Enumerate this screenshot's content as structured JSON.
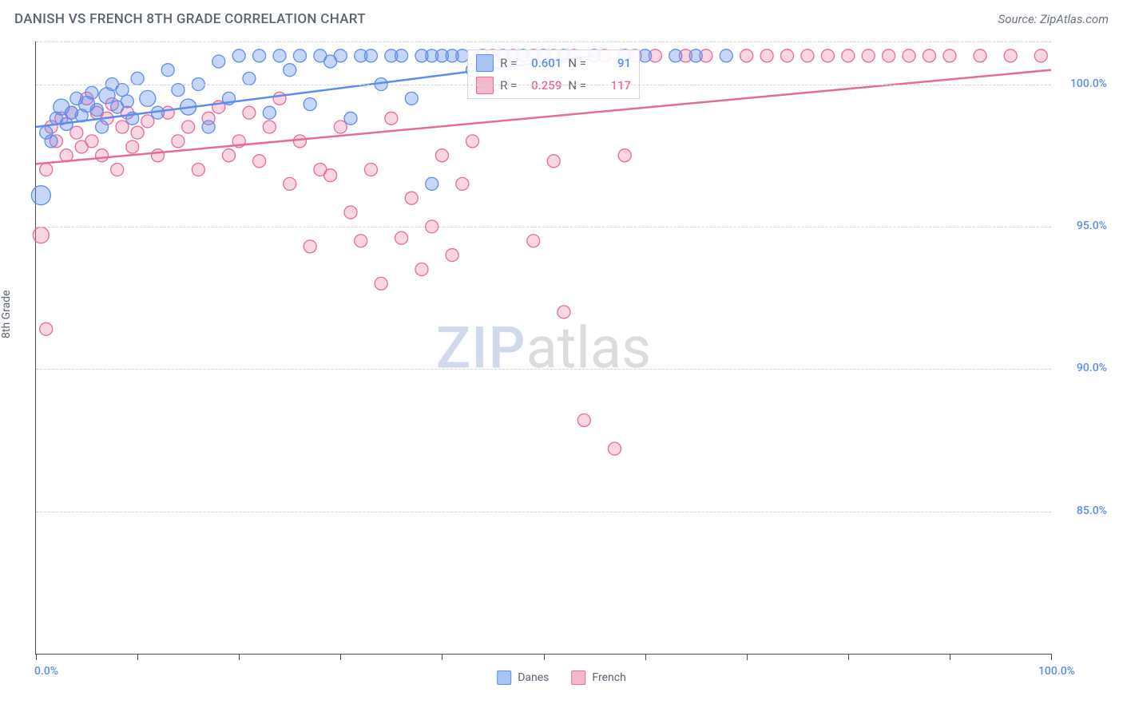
{
  "header": {
    "title": "DANISH VS FRENCH 8TH GRADE CORRELATION CHART",
    "source": "Source: ZipAtlas.com"
  },
  "y_axis": {
    "label": "8th Grade"
  },
  "chart": {
    "type": "scatter",
    "x_domain": [
      0,
      100
    ],
    "y_domain": [
      80,
      101.5
    ],
    "y_ticks": [
      {
        "v": 100,
        "label": "100.0%"
      },
      {
        "v": 95,
        "label": "95.0%"
      },
      {
        "v": 90,
        "label": "90.0%"
      },
      {
        "v": 85,
        "label": "85.0%"
      }
    ],
    "x_ticks": [
      0,
      10,
      20,
      30,
      40,
      50,
      60,
      70,
      80,
      90,
      100
    ],
    "x_min_label": "0.0%",
    "x_max_label": "100.0%",
    "background_color": "#ffffff",
    "grid_color": "#d0d4db",
    "axis_color": "#4a4a4a",
    "watermark": {
      "zip": "ZIP",
      "atlas": "atlas"
    }
  },
  "series": {
    "danes": {
      "label": "Danes",
      "color_fill": "rgba(91,141,239,0.35)",
      "color_stroke": "#5b8def",
      "swatch_fill": "#a9c3f3",
      "swatch_stroke": "#5b8def",
      "r_value": "0.601",
      "n_value": "91",
      "trend": {
        "x1": 0,
        "y1": 98.5,
        "x2": 55,
        "y2": 101.0
      },
      "points": [
        {
          "x": 0.5,
          "y": 96.1,
          "r": 12
        },
        {
          "x": 1,
          "y": 98.3,
          "r": 8
        },
        {
          "x": 1.5,
          "y": 98.0,
          "r": 8
        },
        {
          "x": 2,
          "y": 98.8,
          "r": 8
        },
        {
          "x": 2.5,
          "y": 99.2,
          "r": 10
        },
        {
          "x": 3,
          "y": 98.6,
          "r": 8
        },
        {
          "x": 3.5,
          "y": 99.0,
          "r": 8
        },
        {
          "x": 4,
          "y": 99.5,
          "r": 8
        },
        {
          "x": 4.5,
          "y": 98.9,
          "r": 8
        },
        {
          "x": 5,
          "y": 99.3,
          "r": 10
        },
        {
          "x": 5.5,
          "y": 99.7,
          "r": 8
        },
        {
          "x": 6,
          "y": 99.1,
          "r": 8
        },
        {
          "x": 6.5,
          "y": 98.5,
          "r": 8
        },
        {
          "x": 7,
          "y": 99.6,
          "r": 10
        },
        {
          "x": 7.5,
          "y": 100.0,
          "r": 8
        },
        {
          "x": 8,
          "y": 99.2,
          "r": 8
        },
        {
          "x": 8.5,
          "y": 99.8,
          "r": 8
        },
        {
          "x": 9,
          "y": 99.4,
          "r": 8
        },
        {
          "x": 9.5,
          "y": 98.8,
          "r": 8
        },
        {
          "x": 10,
          "y": 100.2,
          "r": 8
        },
        {
          "x": 11,
          "y": 99.5,
          "r": 10
        },
        {
          "x": 12,
          "y": 99.0,
          "r": 8
        },
        {
          "x": 13,
          "y": 100.5,
          "r": 8
        },
        {
          "x": 14,
          "y": 99.8,
          "r": 8
        },
        {
          "x": 15,
          "y": 99.2,
          "r": 10
        },
        {
          "x": 16,
          "y": 100.0,
          "r": 8
        },
        {
          "x": 17,
          "y": 98.5,
          "r": 8
        },
        {
          "x": 18,
          "y": 100.8,
          "r": 8
        },
        {
          "x": 19,
          "y": 99.5,
          "r": 8
        },
        {
          "x": 20,
          "y": 101.0,
          "r": 8
        },
        {
          "x": 21,
          "y": 100.2,
          "r": 8
        },
        {
          "x": 22,
          "y": 101.0,
          "r": 8
        },
        {
          "x": 23,
          "y": 99.0,
          "r": 8
        },
        {
          "x": 24,
          "y": 101.0,
          "r": 8
        },
        {
          "x": 25,
          "y": 100.5,
          "r": 8
        },
        {
          "x": 26,
          "y": 101.0,
          "r": 8
        },
        {
          "x": 27,
          "y": 99.3,
          "r": 8
        },
        {
          "x": 28,
          "y": 101.0,
          "r": 8
        },
        {
          "x": 29,
          "y": 100.8,
          "r": 8
        },
        {
          "x": 30,
          "y": 101.0,
          "r": 8
        },
        {
          "x": 31,
          "y": 98.8,
          "r": 8
        },
        {
          "x": 32,
          "y": 101.0,
          "r": 8
        },
        {
          "x": 33,
          "y": 101.0,
          "r": 8
        },
        {
          "x": 34,
          "y": 100.0,
          "r": 8
        },
        {
          "x": 35,
          "y": 101.0,
          "r": 8
        },
        {
          "x": 36,
          "y": 101.0,
          "r": 8
        },
        {
          "x": 37,
          "y": 99.5,
          "r": 8
        },
        {
          "x": 38,
          "y": 101.0,
          "r": 8
        },
        {
          "x": 39,
          "y": 101.0,
          "r": 8
        },
        {
          "x": 40,
          "y": 101.0,
          "r": 8
        },
        {
          "x": 41,
          "y": 101.0,
          "r": 8
        },
        {
          "x": 42,
          "y": 101.0,
          "r": 8
        },
        {
          "x": 43,
          "y": 100.5,
          "r": 8
        },
        {
          "x": 44,
          "y": 101.0,
          "r": 8
        },
        {
          "x": 46,
          "y": 101.0,
          "r": 8
        },
        {
          "x": 48,
          "y": 101.0,
          "r": 8
        },
        {
          "x": 50,
          "y": 101.0,
          "r": 8
        },
        {
          "x": 52,
          "y": 101.0,
          "r": 8
        },
        {
          "x": 55,
          "y": 101.0,
          "r": 8
        },
        {
          "x": 58,
          "y": 101.0,
          "r": 8
        },
        {
          "x": 60,
          "y": 101.0,
          "r": 8
        },
        {
          "x": 63,
          "y": 101.0,
          "r": 8
        },
        {
          "x": 65,
          "y": 101.0,
          "r": 8
        },
        {
          "x": 68,
          "y": 101.0,
          "r": 8
        },
        {
          "x": 39,
          "y": 96.5,
          "r": 8
        }
      ]
    },
    "french": {
      "label": "French",
      "color_fill": "rgba(240,120,160,0.30)",
      "color_stroke": "#e76a9b",
      "swatch_fill": "#f4b8cc",
      "swatch_stroke": "#e76a9b",
      "r_value": "0.259",
      "n_value": "117",
      "trend": {
        "x1": 0,
        "y1": 97.2,
        "x2": 100,
        "y2": 100.5
      },
      "points": [
        {
          "x": 0.5,
          "y": 94.7,
          "r": 10
        },
        {
          "x": 1,
          "y": 97.0,
          "r": 8
        },
        {
          "x": 1,
          "y": 91.4,
          "r": 8
        },
        {
          "x": 1.5,
          "y": 98.5,
          "r": 8
        },
        {
          "x": 2,
          "y": 98.0,
          "r": 8
        },
        {
          "x": 2.5,
          "y": 98.8,
          "r": 8
        },
        {
          "x": 3,
          "y": 97.5,
          "r": 8
        },
        {
          "x": 3.5,
          "y": 99.0,
          "r": 8
        },
        {
          "x": 4,
          "y": 98.3,
          "r": 8
        },
        {
          "x": 4.5,
          "y": 97.8,
          "r": 8
        },
        {
          "x": 5,
          "y": 99.5,
          "r": 8
        },
        {
          "x": 5.5,
          "y": 98.0,
          "r": 8
        },
        {
          "x": 6,
          "y": 99.0,
          "r": 8
        },
        {
          "x": 6.5,
          "y": 97.5,
          "r": 8
        },
        {
          "x": 7,
          "y": 98.8,
          "r": 8
        },
        {
          "x": 7.5,
          "y": 99.3,
          "r": 8
        },
        {
          "x": 8,
          "y": 97.0,
          "r": 8
        },
        {
          "x": 8.5,
          "y": 98.5,
          "r": 8
        },
        {
          "x": 9,
          "y": 99.0,
          "r": 8
        },
        {
          "x": 9.5,
          "y": 97.8,
          "r": 8
        },
        {
          "x": 10,
          "y": 98.3,
          "r": 8
        },
        {
          "x": 11,
          "y": 98.7,
          "r": 8
        },
        {
          "x": 12,
          "y": 97.5,
          "r": 8
        },
        {
          "x": 13,
          "y": 99.0,
          "r": 8
        },
        {
          "x": 14,
          "y": 98.0,
          "r": 8
        },
        {
          "x": 15,
          "y": 98.5,
          "r": 8
        },
        {
          "x": 16,
          "y": 97.0,
          "r": 8
        },
        {
          "x": 17,
          "y": 98.8,
          "r": 8
        },
        {
          "x": 18,
          "y": 99.2,
          "r": 8
        },
        {
          "x": 19,
          "y": 97.5,
          "r": 8
        },
        {
          "x": 20,
          "y": 98.0,
          "r": 8
        },
        {
          "x": 21,
          "y": 99.0,
          "r": 8
        },
        {
          "x": 22,
          "y": 97.3,
          "r": 8
        },
        {
          "x": 23,
          "y": 98.5,
          "r": 8
        },
        {
          "x": 24,
          "y": 99.5,
          "r": 8
        },
        {
          "x": 25,
          "y": 96.5,
          "r": 8
        },
        {
          "x": 26,
          "y": 98.0,
          "r": 8
        },
        {
          "x": 27,
          "y": 94.3,
          "r": 8
        },
        {
          "x": 28,
          "y": 97.0,
          "r": 8
        },
        {
          "x": 29,
          "y": 96.8,
          "r": 8
        },
        {
          "x": 30,
          "y": 98.5,
          "r": 8
        },
        {
          "x": 31,
          "y": 95.5,
          "r": 8
        },
        {
          "x": 32,
          "y": 94.5,
          "r": 8
        },
        {
          "x": 33,
          "y": 97.0,
          "r": 8
        },
        {
          "x": 34,
          "y": 93.0,
          "r": 8
        },
        {
          "x": 35,
          "y": 98.8,
          "r": 8
        },
        {
          "x": 36,
          "y": 94.6,
          "r": 8
        },
        {
          "x": 37,
          "y": 96.0,
          "r": 8
        },
        {
          "x": 38,
          "y": 93.5,
          "r": 8
        },
        {
          "x": 39,
          "y": 95.0,
          "r": 8
        },
        {
          "x": 40,
          "y": 97.5,
          "r": 8
        },
        {
          "x": 41,
          "y": 94.0,
          "r": 8
        },
        {
          "x": 42,
          "y": 96.5,
          "r": 8
        },
        {
          "x": 43,
          "y": 98.0,
          "r": 8
        },
        {
          "x": 49,
          "y": 94.5,
          "r": 8
        },
        {
          "x": 51,
          "y": 97.3,
          "r": 8
        },
        {
          "x": 52,
          "y": 92.0,
          "r": 8
        },
        {
          "x": 54,
          "y": 88.2,
          "r": 8
        },
        {
          "x": 57,
          "y": 87.2,
          "r": 8
        },
        {
          "x": 58,
          "y": 97.5,
          "r": 8
        },
        {
          "x": 45,
          "y": 101.0,
          "r": 8
        },
        {
          "x": 47,
          "y": 101.0,
          "r": 8
        },
        {
          "x": 49,
          "y": 101.0,
          "r": 8
        },
        {
          "x": 51,
          "y": 101.0,
          "r": 8
        },
        {
          "x": 53,
          "y": 101.0,
          "r": 8
        },
        {
          "x": 56,
          "y": 101.0,
          "r": 8
        },
        {
          "x": 59,
          "y": 101.0,
          "r": 8
        },
        {
          "x": 61,
          "y": 101.0,
          "r": 8
        },
        {
          "x": 64,
          "y": 101.0,
          "r": 8
        },
        {
          "x": 66,
          "y": 101.0,
          "r": 8
        },
        {
          "x": 70,
          "y": 101.0,
          "r": 8
        },
        {
          "x": 72,
          "y": 101.0,
          "r": 8
        },
        {
          "x": 74,
          "y": 101.0,
          "r": 8
        },
        {
          "x": 76,
          "y": 101.0,
          "r": 8
        },
        {
          "x": 78,
          "y": 101.0,
          "r": 8
        },
        {
          "x": 80,
          "y": 101.0,
          "r": 8
        },
        {
          "x": 82,
          "y": 101.0,
          "r": 8
        },
        {
          "x": 84,
          "y": 101.0,
          "r": 8
        },
        {
          "x": 86,
          "y": 101.0,
          "r": 8
        },
        {
          "x": 88,
          "y": 101.0,
          "r": 8
        },
        {
          "x": 90,
          "y": 101.0,
          "r": 8
        },
        {
          "x": 93,
          "y": 101.0,
          "r": 8
        },
        {
          "x": 96,
          "y": 101.0,
          "r": 8
        },
        {
          "x": 99,
          "y": 101.0,
          "r": 8
        }
      ]
    }
  },
  "stats_box": {
    "r_label": "R =",
    "n_label": "N ="
  },
  "legend_bottom": {
    "danes": "Danes",
    "french": "French"
  }
}
